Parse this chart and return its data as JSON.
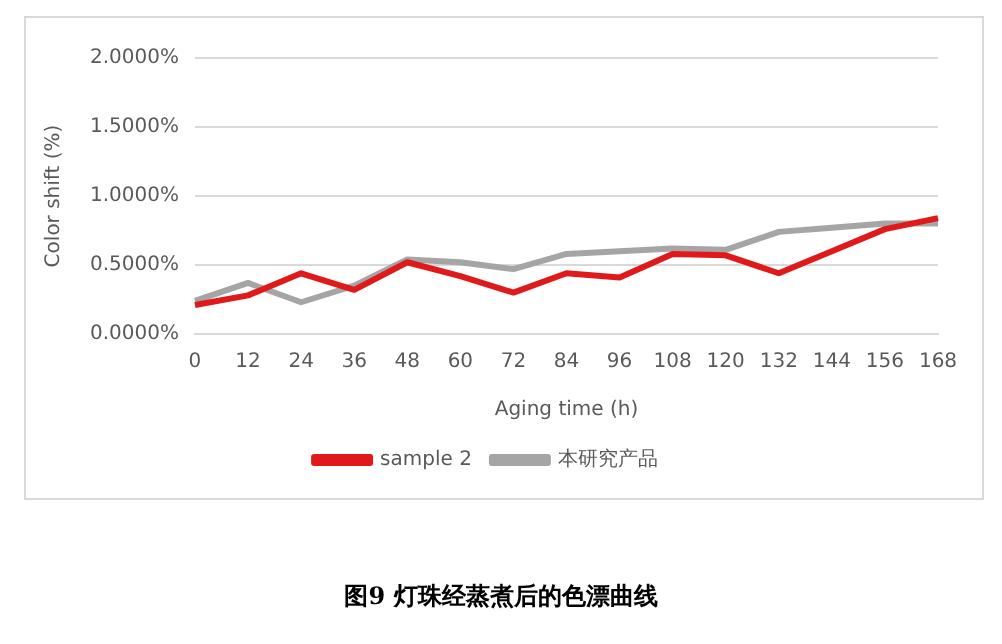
{
  "chart_data": {
    "type": "line",
    "categories": [
      "0",
      "12",
      "24",
      "36",
      "48",
      "60",
      "72",
      "84",
      "96",
      "108",
      "120",
      "132",
      "144",
      "156",
      "168"
    ],
    "series": [
      {
        "name": "sample 2",
        "color": "#e0191b",
        "values": [
          0.21,
          0.28,
          0.44,
          0.32,
          0.52,
          0.42,
          0.3,
          0.44,
          0.41,
          0.58,
          0.57,
          0.44,
          0.6,
          0.76,
          0.84
        ]
      },
      {
        "name": "本研究产品",
        "color": "#a5a5a5",
        "values": [
          0.24,
          0.37,
          0.23,
          0.35,
          0.54,
          0.52,
          0.47,
          0.58,
          0.6,
          0.62,
          0.61,
          0.74,
          0.77,
          0.8,
          0.8
        ]
      }
    ],
    "xlabel": "Aging time (h)",
    "ylabel": "Color shift (%)",
    "ylim": [
      0,
      2
    ],
    "yticks": [
      {
        "value": 0,
        "label": "0.0000%"
      },
      {
        "value": 0.5,
        "label": "0.5000%"
      },
      {
        "value": 1,
        "label": "1.0000%"
      },
      {
        "value": 1.5,
        "label": "1.5000%"
      },
      {
        "value": 2,
        "label": "2.0000%"
      }
    ],
    "grid": "y",
    "legend": "bottom",
    "marker": "none",
    "line_style": "solid",
    "annotations": [
      "图9  灯珠经蒸煮后的色漂曲线"
    ]
  }
}
